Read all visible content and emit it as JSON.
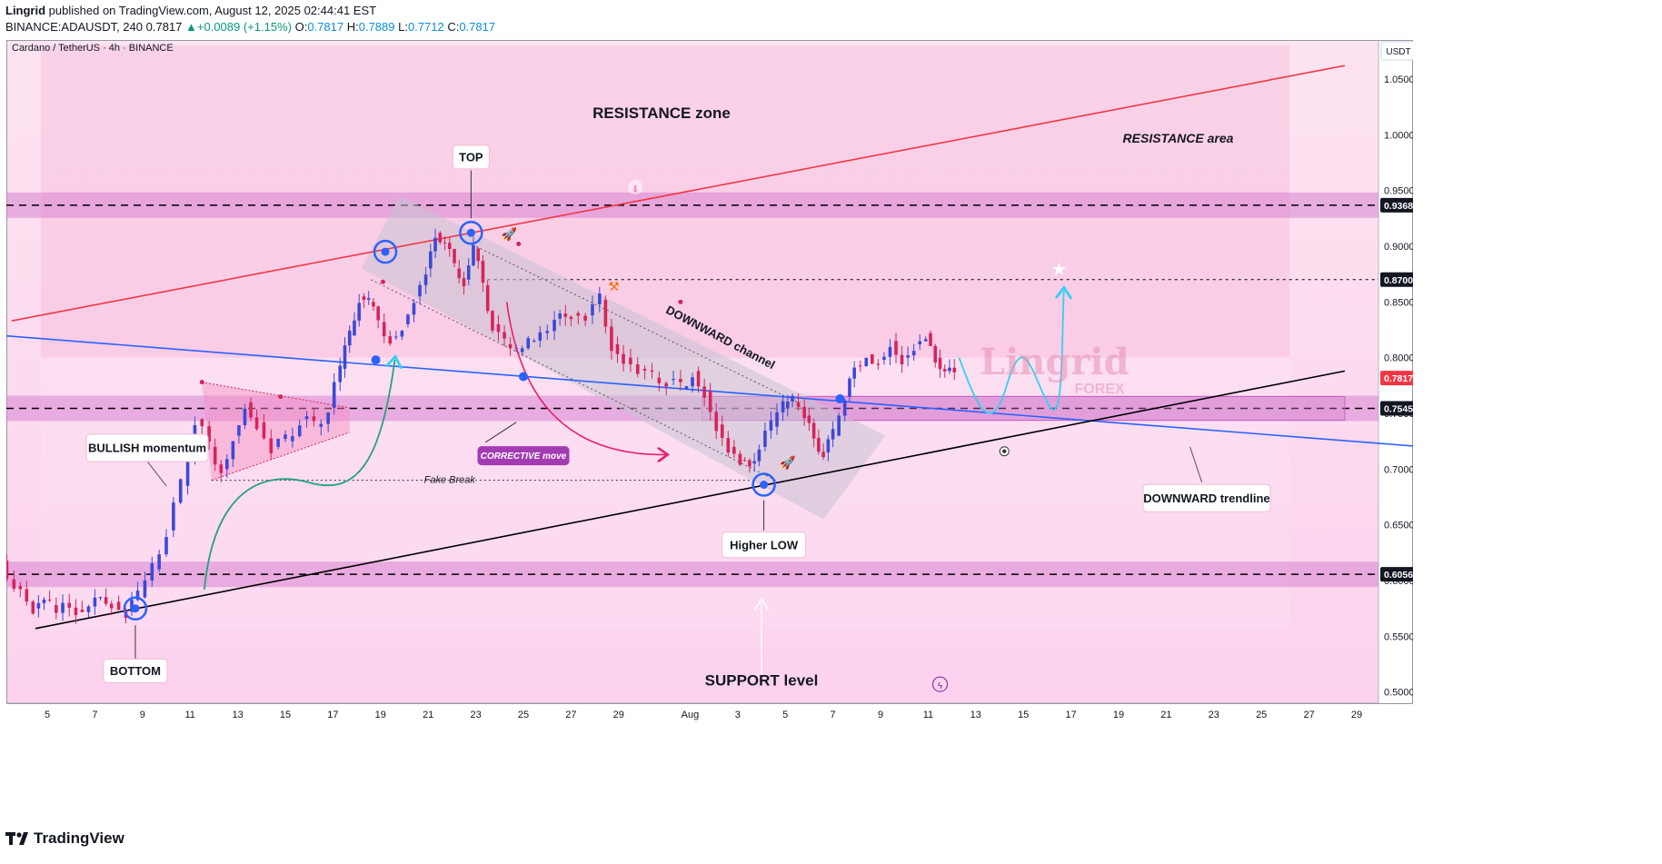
{
  "header": {
    "author": "Lingrid",
    "published_text": "published on TradingView.com, August 12, 2025 02:44:41 EST",
    "symbol": "BINANCE:ADAUSDT, 240",
    "last": "0.7817",
    "change": "▲+0.0089 (+1.15%)",
    "o_label": "O:",
    "o_value": "0.7817",
    "h_label": "H:",
    "h_value": "0.7889",
    "l_label": "L:",
    "l_value": "0.7712",
    "c_label": "C:",
    "c_value": "0.7817"
  },
  "footer": {
    "brand": "TradingView",
    "brand_icon": "tradingview-logo-icon"
  },
  "chart_data": {
    "type": "candlestick",
    "title": "Cardano / TetherUS · 4h · BINANCE",
    "currency": "USDT",
    "ylim": [
      0.49,
      1.085
    ],
    "y_ticks": [
      "1.0500",
      "1.0000",
      "0.9500",
      "0.9000",
      "0.8500",
      "0.8000",
      "0.7500",
      "0.7000",
      "0.6500",
      "0.6000",
      "0.5500",
      "0.5000"
    ],
    "x_ticks": [
      {
        "label": "5",
        "day": 5
      },
      {
        "label": "7",
        "day": 7
      },
      {
        "label": "9",
        "day": 9
      },
      {
        "label": "11",
        "day": 11
      },
      {
        "label": "13",
        "day": 13
      },
      {
        "label": "15",
        "day": 15
      },
      {
        "label": "17",
        "day": 17
      },
      {
        "label": "19",
        "day": 19
      },
      {
        "label": "21",
        "day": 21
      },
      {
        "label": "23",
        "day": 23
      },
      {
        "label": "25",
        "day": 25
      },
      {
        "label": "27",
        "day": 27
      },
      {
        "label": "29",
        "day": 29
      },
      {
        "label": "Aug",
        "day": 32
      },
      {
        "label": "3",
        "day": 34
      },
      {
        "label": "5",
        "day": 36
      },
      {
        "label": "7",
        "day": 38
      },
      {
        "label": "9",
        "day": 40
      },
      {
        "label": "11",
        "day": 42
      },
      {
        "label": "13",
        "day": 44
      },
      {
        "label": "15",
        "day": 46
      },
      {
        "label": "17",
        "day": 48
      },
      {
        "label": "19",
        "day": 50
      },
      {
        "label": "21",
        "day": 52
      },
      {
        "label": "23",
        "day": 54
      },
      {
        "label": "25",
        "day": 56
      },
      {
        "label": "27",
        "day": 58
      },
      {
        "label": "29",
        "day": 60
      }
    ],
    "price_path": [
      [
        3.0,
        0.618
      ],
      [
        3.6,
        0.595
      ],
      [
        4.4,
        0.575
      ],
      [
        5.1,
        0.578
      ],
      [
        6.2,
        0.574
      ],
      [
        7.0,
        0.585
      ],
      [
        7.7,
        0.581
      ],
      [
        8.3,
        0.572
      ],
      [
        8.8,
        0.585
      ],
      [
        9.4,
        0.61
      ],
      [
        10.0,
        0.645
      ],
      [
        10.6,
        0.685
      ],
      [
        11.2,
        0.745
      ],
      [
        11.8,
        0.72
      ],
      [
        12.3,
        0.7
      ],
      [
        12.8,
        0.73
      ],
      [
        13.3,
        0.76
      ],
      [
        13.8,
        0.742
      ],
      [
        14.4,
        0.72
      ],
      [
        15.0,
        0.725
      ],
      [
        15.6,
        0.745
      ],
      [
        16.2,
        0.738
      ],
      [
        16.8,
        0.755
      ],
      [
        17.3,
        0.79
      ],
      [
        17.7,
        0.82
      ],
      [
        18.1,
        0.855
      ],
      [
        18.5,
        0.85
      ],
      [
        18.9,
        0.832
      ],
      [
        19.4,
        0.818
      ],
      [
        19.9,
        0.83
      ],
      [
        20.4,
        0.855
      ],
      [
        20.9,
        0.88
      ],
      [
        21.3,
        0.912
      ],
      [
        21.7,
        0.903
      ],
      [
        22.1,
        0.88
      ],
      [
        22.5,
        0.87
      ],
      [
        22.9,
        0.898
      ],
      [
        23.3,
        0.865
      ],
      [
        23.7,
        0.83
      ],
      [
        24.2,
        0.812
      ],
      [
        24.7,
        0.805
      ],
      [
        25.2,
        0.815
      ],
      [
        25.7,
        0.822
      ],
      [
        26.3,
        0.835
      ],
      [
        27.0,
        0.84
      ],
      [
        27.6,
        0.838
      ],
      [
        28.2,
        0.852
      ],
      [
        28.7,
        0.812
      ],
      [
        29.2,
        0.8
      ],
      [
        29.8,
        0.79
      ],
      [
        30.4,
        0.782
      ],
      [
        31.0,
        0.78
      ],
      [
        31.6,
        0.772
      ],
      [
        32.1,
        0.788
      ],
      [
        32.6,
        0.77
      ],
      [
        33.1,
        0.74
      ],
      [
        33.6,
        0.72
      ],
      [
        34.1,
        0.708
      ],
      [
        34.5,
        0.705
      ],
      [
        34.9,
        0.72
      ],
      [
        35.4,
        0.738
      ],
      [
        35.9,
        0.755
      ],
      [
        36.3,
        0.76
      ],
      [
        36.8,
        0.748
      ],
      [
        37.2,
        0.728
      ],
      [
        37.6,
        0.715
      ],
      [
        38.0,
        0.73
      ],
      [
        38.5,
        0.765
      ],
      [
        38.9,
        0.793
      ],
      [
        39.4,
        0.803
      ],
      [
        39.9,
        0.798
      ],
      [
        40.4,
        0.815
      ],
      [
        40.9,
        0.8
      ],
      [
        41.4,
        0.812
      ],
      [
        41.9,
        0.822
      ],
      [
        42.3,
        0.8
      ],
      [
        42.7,
        0.788
      ],
      [
        43.1,
        0.782
      ]
    ],
    "price_lines": [
      {
        "value": 0.9368,
        "label": "0.9368",
        "style": "dashed",
        "zone": true
      },
      {
        "value": 0.87,
        "label": "0.8700",
        "style": "dotted",
        "zone": false
      },
      {
        "value": 0.7817,
        "label": "0.7817",
        "style": "current",
        "zone": false
      },
      {
        "value": 0.7545,
        "label": "0.7545",
        "style": "dashed",
        "zone": true
      },
      {
        "value": 0.6056,
        "label": "0.6056",
        "style": "dashed",
        "zone": true
      }
    ],
    "trendlines": [
      {
        "name": "red-resistance-trendline",
        "color": "#f23645",
        "from": [
          3.5,
          0.833
        ],
        "to": [
          59.5,
          1.062
        ]
      },
      {
        "name": "blue-downward-trendline",
        "color": "#2962ff",
        "from": [
          0,
          0.825
        ],
        "to": [
          64,
          0.718
        ]
      },
      {
        "name": "black-support-trendline",
        "color": "#000000",
        "from": [
          4.5,
          0.557
        ],
        "to": [
          59.5,
          0.788
        ]
      }
    ],
    "annotations": {
      "resistance_zone": "RESISTANCE zone",
      "resistance_area": "RESISTANCE area",
      "top": "TOP",
      "bullish_momentum": "BULLISH momentum",
      "downward_channel": "DOWNWARD channel",
      "corrective_move": "CORRECTIVE move",
      "fake_break": "Fake Break",
      "higher_low": "Higher LOW",
      "downward_trendline": "DOWNWARD trendline",
      "bottom": "BOTTOM",
      "support_level": "SUPPORT level",
      "watermark": "Lingrid",
      "watermark_sub": "FOREX"
    },
    "colors": {
      "background_top": "#fde4f0",
      "background_bottom": "#fcd2ee",
      "zone": "#d783d2",
      "up": "#3b49d6",
      "down": "#d6245a",
      "projection": "#33d1f2"
    }
  }
}
